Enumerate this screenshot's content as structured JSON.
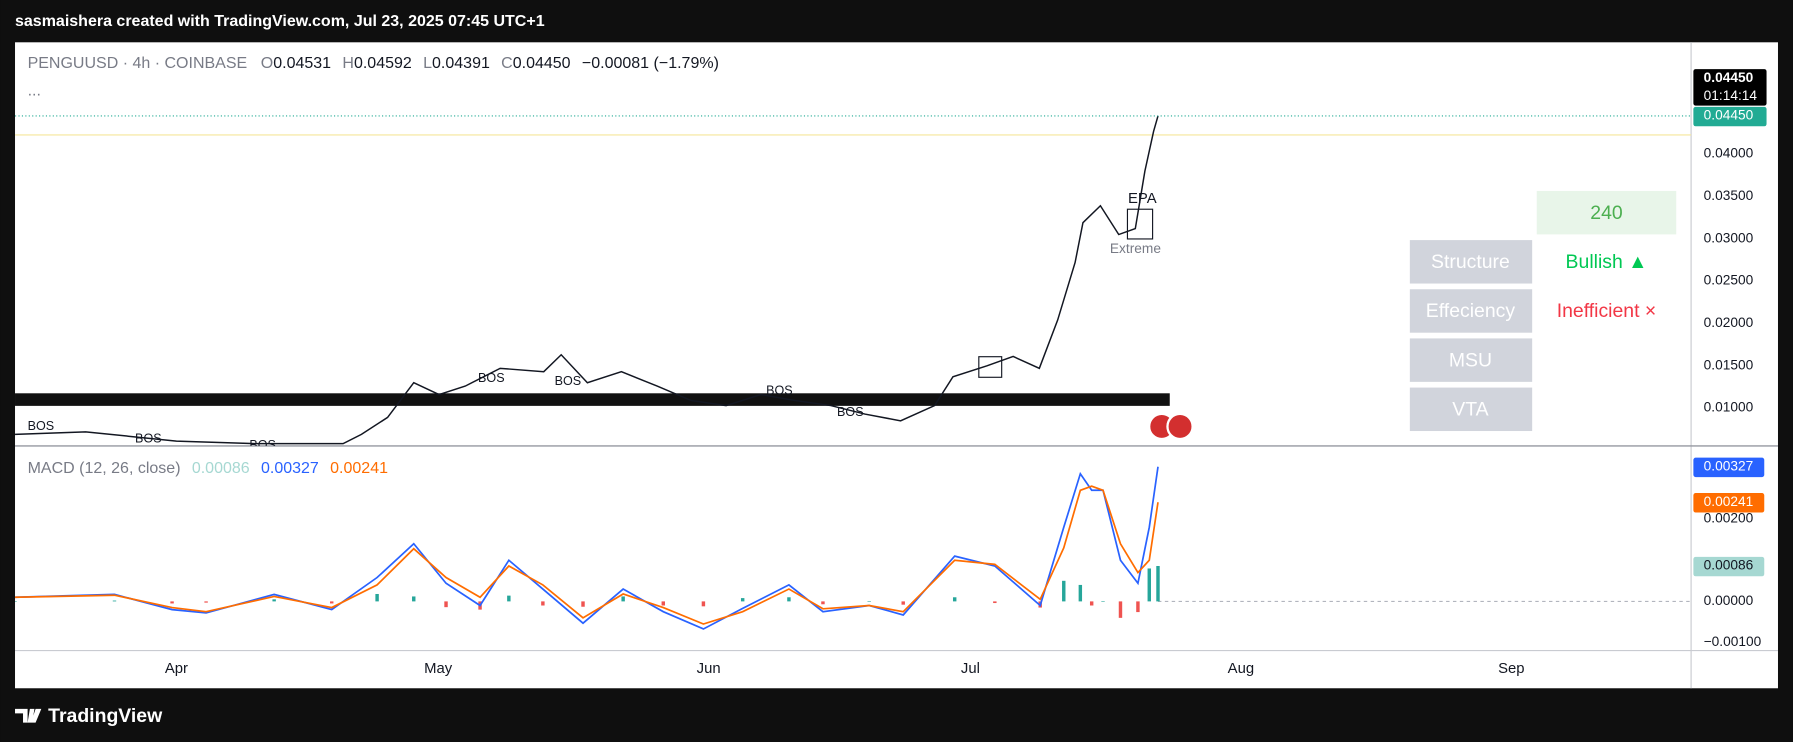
{
  "header": {
    "caption": "sasmaishera created with TradingView.com, Jul 23, 2025 07:45 UTC+1"
  },
  "footer": {
    "brand": "TradingView"
  },
  "panel": {
    "timeframe": "240",
    "rows": [
      {
        "label": "Structure",
        "status": "Bullish ▲"
      },
      {
        "label": "Effeciency",
        "status": "Inefficient ×"
      },
      {
        "label": "MSU"
      },
      {
        "label": "VTA"
      }
    ]
  },
  "chart_data": [
    {
      "type": "line",
      "symbol": "PENGUUSD · 4h · COINBASE",
      "ohlc": [
        {
          "key": "O",
          "value": "0.04531"
        },
        {
          "key": "H",
          "value": "0.04592"
        },
        {
          "key": "L",
          "value": "0.04391"
        },
        {
          "key": "C",
          "value": "0.04450"
        }
      ],
      "change": "−0.00081 (−1.79%)",
      "more": "...",
      "x": [
        72.5,
        80.6,
        91,
        100.1,
        110.1,
        112.2,
        115.2,
        118.2,
        121.1,
        124.1,
        128.1,
        133.1,
        135.1,
        138.1,
        142.0,
        146.1,
        150.0,
        154.0,
        158.0,
        161.9,
        166.0,
        169.9,
        174.0,
        177.9,
        180.0,
        183.9,
        186.9,
        189.9,
        192.0,
        194.0,
        194.9,
        196.9,
        199.0,
        200.9,
        202.0,
        203.0,
        203.5
      ],
      "values": [
        0.0069,
        0.0072,
        0.0061,
        0.0058,
        0.0058,
        0.0069,
        0.0089,
        0.013,
        0.0116,
        0.0126,
        0.0147,
        0.0143,
        0.0163,
        0.013,
        0.0143,
        0.0126,
        0.0109,
        0.0103,
        0.0116,
        0.0109,
        0.0103,
        0.0093,
        0.0085,
        0.0103,
        0.0137,
        0.015,
        0.0161,
        0.0147,
        0.0204,
        0.0272,
        0.0319,
        0.0339,
        0.0305,
        0.0312,
        0.038,
        0.0427,
        0.0445
      ],
      "color": "#131722",
      "xlim": [
        72.5,
        264.6
      ],
      "ylim": [
        0.00554,
        0.0532
      ],
      "yticks": [
        {
          "value": 0.01,
          "label": "0.01000"
        },
        {
          "value": 0.015,
          "label": "0.01500"
        },
        {
          "value": 0.02,
          "label": "0.02000"
        },
        {
          "value": 0.025,
          "label": "0.02500"
        },
        {
          "value": 0.03,
          "label": "0.03000"
        },
        {
          "value": 0.035,
          "label": "0.03500"
        },
        {
          "value": 0.04,
          "label": "0.04000"
        }
      ],
      "last_price": {
        "value": 0.0445,
        "label": "0.04450",
        "color": "#22ab94"
      },
      "countdown": "01:14:14",
      "annotations": [
        "BOS",
        "BOS",
        "BOS",
        "BOS",
        "BOS",
        "BOS",
        "BOS",
        "EPA",
        "Extreme"
      ]
    },
    {
      "type": "macd",
      "title": "MACD (12, 26, close)",
      "x": [
        72.5,
        83.9,
        90.5,
        94.4,
        102.2,
        108.8,
        114.0,
        118.2,
        121.9,
        125.8,
        129.1,
        133.0,
        137.6,
        142.2,
        146.8,
        151.4,
        155.9,
        161.2,
        165.1,
        170.4,
        174.3,
        180.2,
        184.8,
        190.0,
        192.7,
        194.6,
        195.9,
        197.2,
        199.2,
        201.2,
        202.5,
        203.5
      ],
      "series": [
        {
          "kind": "histogram",
          "color": "#26a69a",
          "negative_color": "#ef5350",
          "legend_color": "#a6d8d2",
          "last_label": "0.00086",
          "values": [
            0,
            2e-05,
            -5e-05,
            -3e-05,
            5e-05,
            -5e-05,
            0.00018,
            0.00012,
            -0.00014,
            -0.0002,
            0.00014,
            -0.0001,
            -0.00013,
            0.00012,
            -0.0001,
            -0.00012,
            8e-05,
            0.0001,
            -7e-05,
            0,
            -8e-05,
            0.0001,
            -4e-05,
            -0.00015,
            0.0005,
            0.0004,
            -0.0001,
            0,
            -0.0004,
            -0.00026,
            0.0008,
            0.00086
          ]
        },
        {
          "kind": "line",
          "color": "#2962ff",
          "last_label": "0.00327",
          "values": [
            0.0001,
            0.00017,
            -0.0002,
            -0.00028,
            0.00017,
            -0.0002,
            0.00058,
            0.0014,
            0.00044,
            -0.0001,
            0.001,
            0.0003,
            -0.00053,
            0.0003,
            -0.00025,
            -0.00067,
            -0.00017,
            0.0004,
            -0.00025,
            -0.0001,
            -0.00033,
            0.0011,
            0.00086,
            -0.0001,
            0.0018,
            0.0031,
            0.0027,
            0.0027,
            0.001,
            0.00044,
            0.0018,
            0.00327
          ]
        },
        {
          "kind": "line",
          "color": "#ff6d00",
          "last_label": "0.00241",
          "values": [
            0.0001,
            0.00015,
            -0.00015,
            -0.00025,
            0.00012,
            -0.00015,
            0.0004,
            0.00128,
            0.00058,
            0.0001,
            0.00086,
            0.0004,
            -0.0004,
            0.00018,
            -0.00015,
            -0.00055,
            -0.00025,
            0.0003,
            -0.00018,
            -0.0001,
            -0.00025,
            0.001,
            0.0009,
            5e-05,
            0.0013,
            0.0027,
            0.0028,
            0.0027,
            0.0014,
            0.0007,
            0.001,
            0.00241
          ]
        }
      ],
      "xlim": [
        72.5,
        264.6
      ],
      "ylim": [
        -0.001194,
        0.003778
      ],
      "yticks": [
        {
          "value": -0.001,
          "label": "−0.00100"
        },
        {
          "value": 0,
          "label": "0.00000"
        },
        {
          "value": 0.002,
          "label": "0.00200"
        }
      ],
      "xticks": [
        {
          "value": 91,
          "label": "Apr"
        },
        {
          "value": 121,
          "label": "May"
        },
        {
          "value": 152,
          "label": "Jun"
        },
        {
          "value": 182,
          "label": "Jul"
        },
        {
          "value": 213,
          "label": "Aug"
        },
        {
          "value": 244,
          "label": "Sep"
        }
      ],
      "grid": false
    }
  ]
}
